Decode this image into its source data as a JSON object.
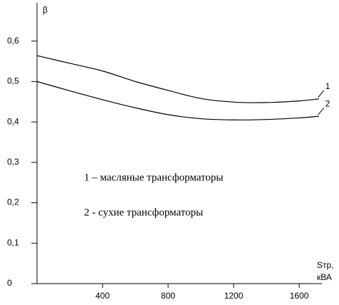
{
  "chart_data": {
    "type": "line",
    "y_label": "β",
    "x_label": [
      "Sтр,",
      "кВА"
    ],
    "annotations": [
      "1 – масляные трансформаторы",
      "2 - сухие трансформаторы"
    ],
    "x": [
      0,
      200,
      400,
      600,
      800,
      1000,
      1200,
      1400,
      1600,
      1720
    ],
    "series": [
      {
        "name": "1",
        "color": "#000000",
        "values": [
          0.564,
          0.545,
          0.526,
          0.5,
          0.478,
          0.458,
          0.449,
          0.448,
          0.452,
          0.457
        ]
      },
      {
        "name": "2",
        "color": "#000000",
        "values": [
          0.5,
          0.477,
          0.455,
          0.435,
          0.418,
          0.408,
          0.405,
          0.406,
          0.41,
          0.414
        ]
      }
    ],
    "xlim": [
      0,
      1730
    ],
    "ylim": [
      0,
      0.684
    ],
    "xticks": [
      400,
      800,
      1200,
      1600
    ],
    "yticks": [
      0,
      {
        "value": 0.1,
        "label": "0,1"
      },
      {
        "value": 0.2,
        "label": "0,2"
      },
      {
        "value": 0.3,
        "label": "0,3"
      },
      {
        "value": 0.4,
        "label": "0,4"
      },
      {
        "value": 0.5,
        "label": "0,5"
      },
      {
        "value": 0.6,
        "label": "0,6"
      }
    ],
    "grid": false
  }
}
